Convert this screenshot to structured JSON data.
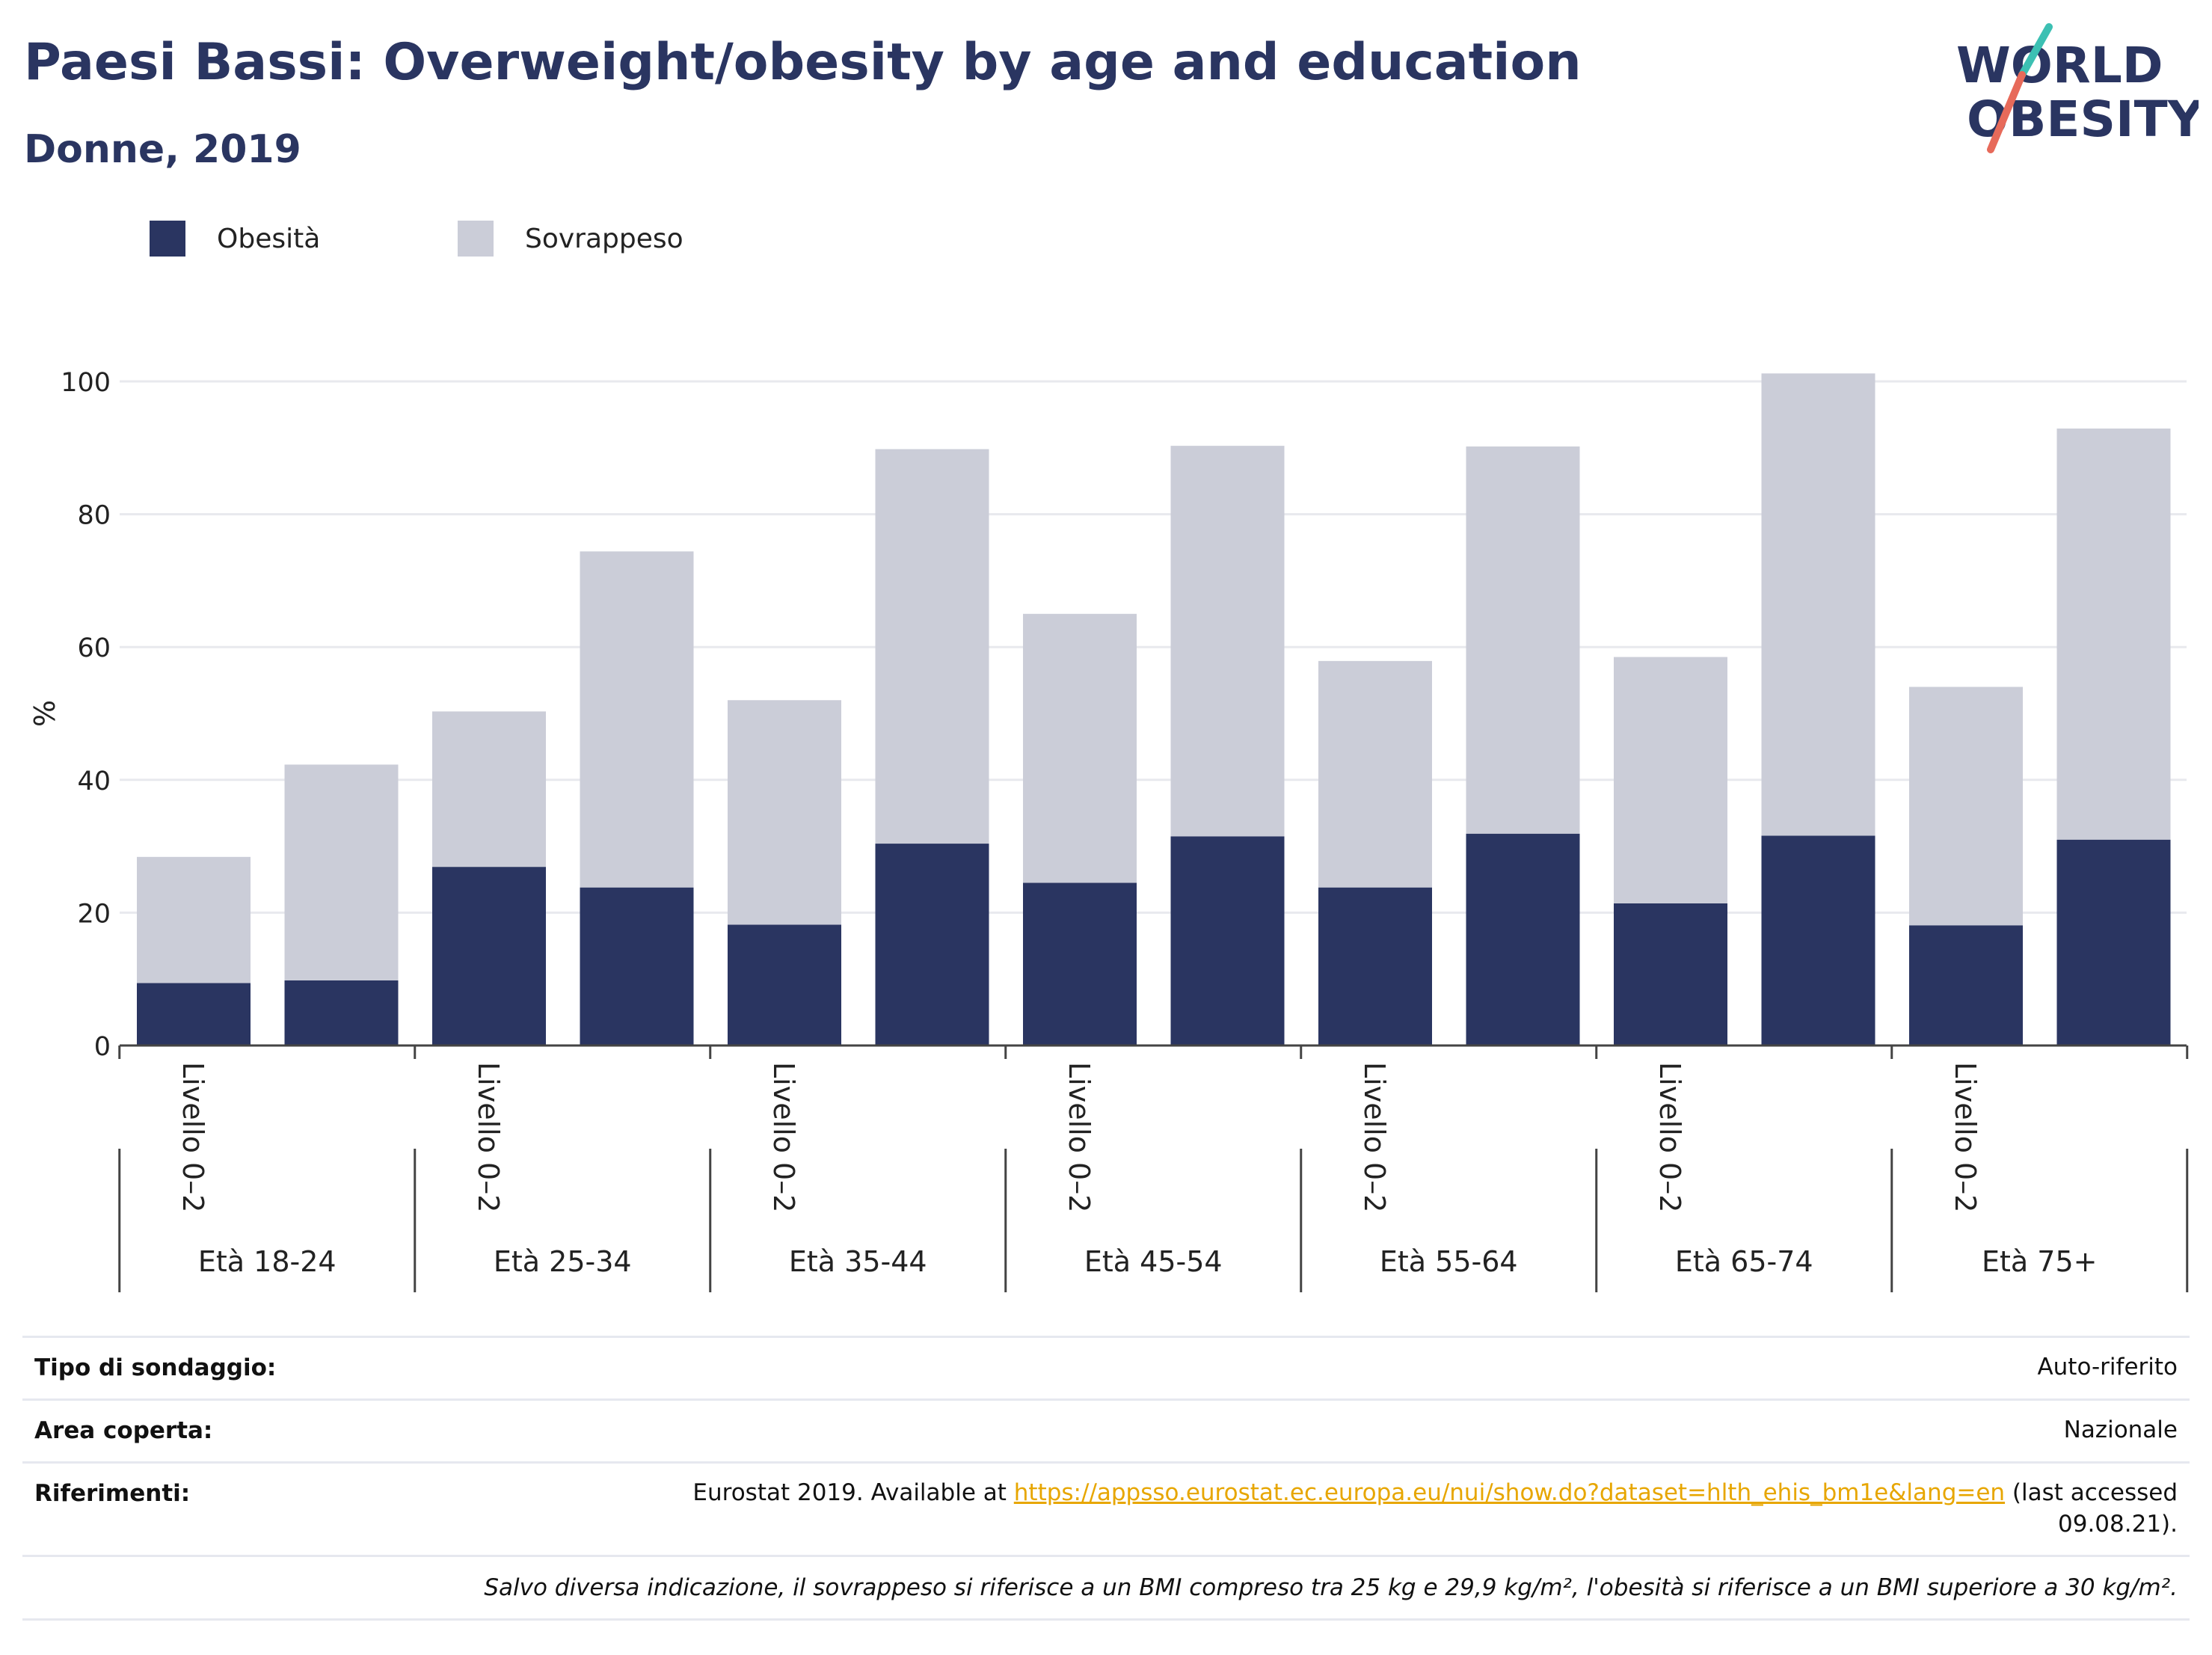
{
  "header": {
    "title": "Paesi Bassi: Overweight/obesity by age and education",
    "subtitle": "Donne, 2019"
  },
  "logo": {
    "line1": "WORLD",
    "line2": "OBESITY",
    "colors": {
      "text": "#2a3561",
      "slash_teal": "#3cc0b3",
      "slash_red": "#e76a5a"
    }
  },
  "chart_data": {
    "type": "bar",
    "stacked": true,
    "ylabel": "%",
    "ylim": [
      0,
      100
    ],
    "yticks": [
      0,
      20,
      40,
      60,
      80,
      100
    ],
    "grid": true,
    "legend_position": "top-left",
    "groups": [
      "Età 18-24",
      "Età 25-34",
      "Età 35-44",
      "Età 45-54",
      "Età 55-64",
      "Età 65-74",
      "Età 75+"
    ],
    "bars_per_group": 2,
    "bar_labels": [
      "Livello 0–2",
      "",
      "Livello 0–2",
      "",
      "Livello 0–2",
      "",
      "Livello 0–2",
      "",
      "Livello 0–2",
      "",
      "Livello 0–2",
      "",
      "Livello 0–2",
      ""
    ],
    "series": [
      {
        "name": "Obesità",
        "color": "#2a3561",
        "values": [
          9.4,
          9.8,
          26.9,
          23.8,
          18.2,
          30.4,
          24.5,
          31.5,
          23.8,
          31.9,
          21.4,
          31.6,
          18.1,
          31.0
        ]
      },
      {
        "name": "Sovrappeso",
        "color": "#cbcdd8",
        "values": [
          19.0,
          32.5,
          23.4,
          50.6,
          33.8,
          59.4,
          40.5,
          58.8,
          34.1,
          58.3,
          37.1,
          69.6,
          35.9,
          61.9
        ]
      }
    ]
  },
  "info": {
    "rows": [
      {
        "label": "Tipo di sondaggio:",
        "value": "Auto-riferito"
      },
      {
        "label": "Area coperta:",
        "value": "Nazionale"
      }
    ],
    "references": {
      "label": "Riferimenti:",
      "prefix": "Eurostat 2019. Available at",
      "link": "https://appsso.eurostat.ec.europa.eu/nui/show.do?dataset=hlth_ehis_bm1e&lang=en",
      "suffix": "(last accessed",
      "date": "09.08.21)."
    },
    "note": "Salvo diversa indicazione, il sovrappeso si riferisce a un BMI compreso tra 25 kg e 29,9 kg/m², l'obesità si riferisce a un BMI superiore a 30 kg/m²."
  }
}
